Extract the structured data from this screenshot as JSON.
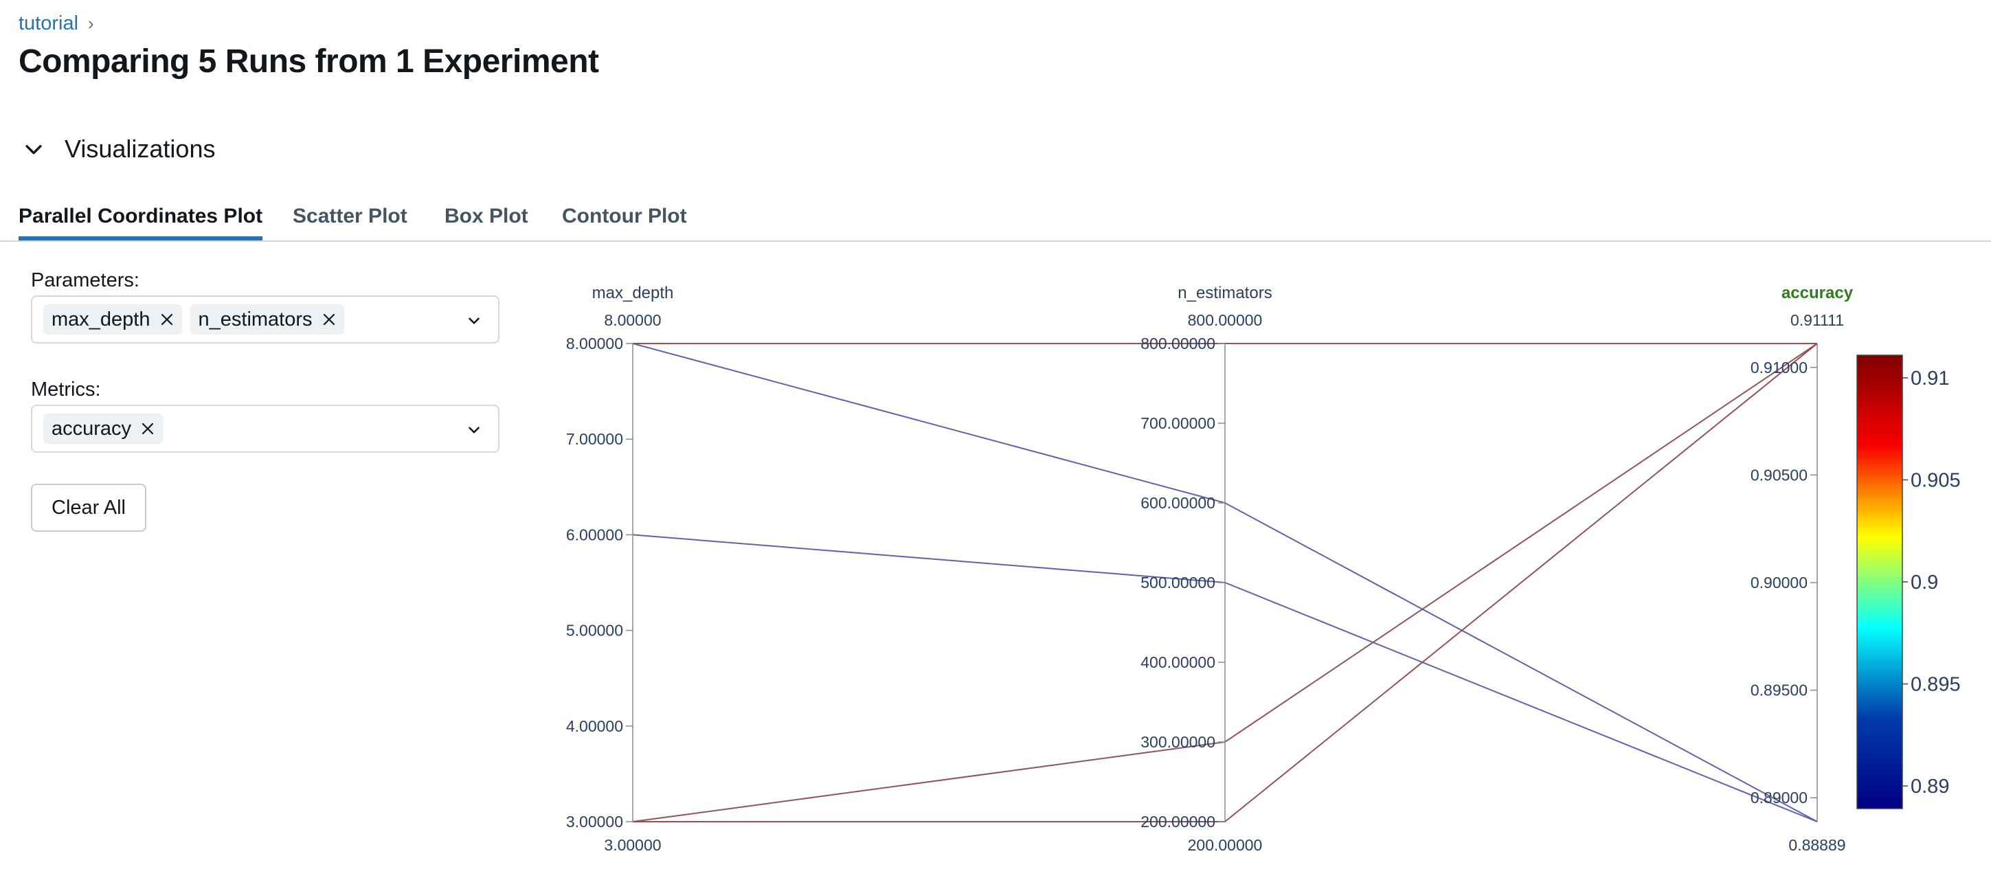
{
  "breadcrumb": {
    "link": "tutorial",
    "separator": "›"
  },
  "page_title": "Comparing 5 Runs from 1 Experiment",
  "section": {
    "label": "Visualizations"
  },
  "tabs": [
    {
      "label": "Parallel Coordinates Plot"
    },
    {
      "label": "Scatter Plot"
    },
    {
      "label": "Box Plot"
    },
    {
      "label": "Contour Plot"
    }
  ],
  "filters": {
    "parameters_label": "Parameters:",
    "parameters": [
      "max_depth",
      "n_estimators"
    ],
    "metrics_label": "Metrics:",
    "metrics": [
      "accuracy"
    ],
    "clear_label": "Clear All"
  },
  "chart_data": {
    "type": "parallel_coordinates",
    "axes": [
      {
        "name": "max_depth",
        "range": [
          3,
          8
        ],
        "range_labels": [
          "3.00000",
          "8.00000"
        ],
        "ticks": [
          3,
          4,
          5,
          6,
          7,
          8
        ],
        "tick_labels": [
          "3.00000",
          "4.00000",
          "5.00000",
          "6.00000",
          "7.00000",
          "8.00000"
        ],
        "highlight": false
      },
      {
        "name": "n_estimators",
        "range": [
          200,
          800
        ],
        "range_labels": [
          "200.00000",
          "800.00000"
        ],
        "ticks": [
          200,
          300,
          400,
          500,
          600,
          700,
          800
        ],
        "tick_labels": [
          "200.00000",
          "300.00000",
          "400.00000",
          "500.00000",
          "600.00000",
          "700.00000",
          "800.00000"
        ],
        "highlight": false
      },
      {
        "name": "accuracy",
        "range": [
          0.88889,
          0.91111
        ],
        "range_labels": [
          "0.88889",
          "0.91111"
        ],
        "ticks": [
          0.89,
          0.895,
          0.9,
          0.905,
          0.91
        ],
        "tick_labels": [
          "0.89000",
          "0.89500",
          "0.90000",
          "0.90500",
          "0.91000"
        ],
        "highlight": true
      }
    ],
    "runs": [
      {
        "max_depth": 8,
        "n_estimators": 800,
        "accuracy": 0.91111
      },
      {
        "max_depth": 8,
        "n_estimators": 600,
        "accuracy": 0.88889
      },
      {
        "max_depth": 6,
        "n_estimators": 500,
        "accuracy": 0.88889
      },
      {
        "max_depth": 3,
        "n_estimators": 300,
        "accuracy": 0.91111
      },
      {
        "max_depth": 3,
        "n_estimators": 200,
        "accuracy": 0.91111
      }
    ],
    "colorscale": {
      "metric": "accuracy",
      "range": [
        0.88889,
        0.91111
      ],
      "stops": [
        "#000083",
        "#003caa",
        "#05ffff",
        "#ffff00",
        "#fa0000",
        "#800000"
      ],
      "ticks": [
        0.89,
        0.895,
        0.9,
        0.905,
        0.91
      ],
      "tick_labels": [
        "0.89",
        "0.895",
        "0.9",
        "0.905",
        "0.91"
      ]
    },
    "highlight_color": "#2e7d1a"
  }
}
